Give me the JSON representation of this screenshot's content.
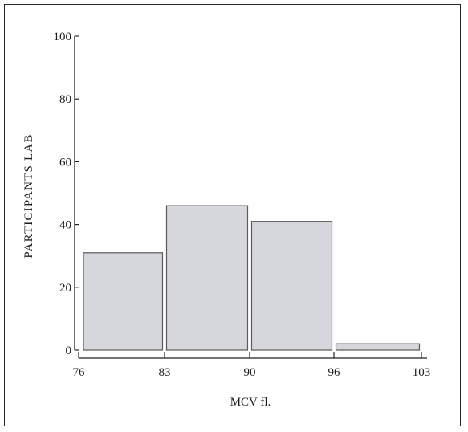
{
  "chart_data": {
    "type": "bar",
    "bin_edges": [
      76,
      83,
      90,
      96,
      103
    ],
    "x_tick_labels": [
      "76",
      "83",
      "90",
      "96",
      "103"
    ],
    "bins": [
      {
        "from": 76,
        "to": 83,
        "value": 31
      },
      {
        "from": 83,
        "to": 90,
        "value": 46
      },
      {
        "from": 90,
        "to": 96,
        "value": 41
      },
      {
        "from": 96,
        "to": 103,
        "value": 2
      }
    ],
    "values": [
      31,
      46,
      41,
      2
    ],
    "y_ticks": [
      0,
      20,
      40,
      60,
      80,
      100
    ],
    "y_tick_labels": [
      "0",
      "20",
      "40",
      "60",
      "80",
      "100"
    ],
    "ylim": [
      0,
      100
    ],
    "xlabel": "MCV fl.",
    "ylabel": "PARTICIPANTS LAB",
    "grid": false,
    "colors": {
      "bar_fill": "#d6d6dd",
      "bar_stroke": "#5a5a5a",
      "axis": "#222222"
    }
  }
}
